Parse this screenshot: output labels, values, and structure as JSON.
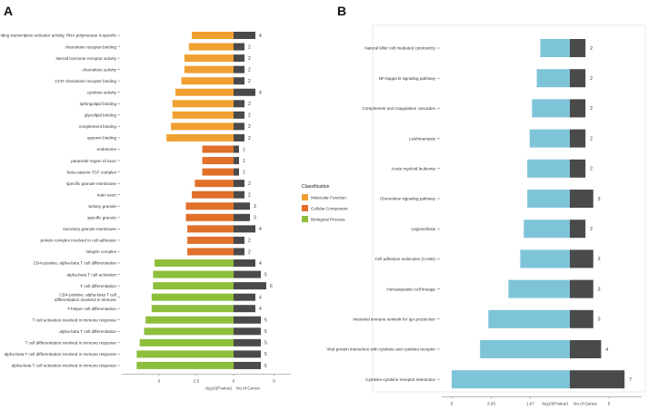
{
  "figure": {
    "panel_a": "A",
    "panel_b": "B",
    "legend": {
      "title": "Classification",
      "items": [
        {
          "label": "Molecular Function",
          "color": "#F0A030"
        },
        {
          "label": "Cellular Component",
          "color": "#E0702A"
        },
        {
          "label": "Biological Process",
          "color": "#8DBE3C"
        }
      ]
    }
  },
  "chart_data": [
    {
      "type": "bar",
      "panel": "A",
      "xlabel_left": "-log10(Pvalue)",
      "xlabel_right": "No.of Genes",
      "ticks_left": [
        "5",
        "2.5",
        "0"
      ],
      "ticks_right": [
        "5"
      ],
      "neglog10_pvalue_max": 7.5,
      "gene_count_max": 8,
      "count_bar_color": "#4A4A4A",
      "rows": [
        {
          "term": "DNA-binding transcription activator activity, RNA polymerase II-specific",
          "class": "Molecular Function",
          "neglog10p": 2.8,
          "genes": 4
        },
        {
          "term": "chemokine receptor binding",
          "class": "Molecular Function",
          "neglog10p": 3.0,
          "genes": 2
        },
        {
          "term": "steroid hormone receptor activity",
          "class": "Molecular Function",
          "neglog10p": 3.3,
          "genes": 2
        },
        {
          "term": "chemokine activity",
          "class": "Molecular Function",
          "neglog10p": 3.3,
          "genes": 2
        },
        {
          "term": "CCR chemokine receptor binding",
          "class": "Molecular Function",
          "neglog10p": 3.5,
          "genes": 2
        },
        {
          "term": "cytokine activity",
          "class": "Molecular Function",
          "neglog10p": 3.9,
          "genes": 4
        },
        {
          "term": "sphingolipid binding",
          "class": "Molecular Function",
          "neglog10p": 4.1,
          "genes": 2
        },
        {
          "term": "glycolipid binding",
          "class": "Molecular Function",
          "neglog10p": 4.1,
          "genes": 2
        },
        {
          "term": "complement binding",
          "class": "Molecular Function",
          "neglog10p": 4.2,
          "genes": 2
        },
        {
          "term": "opsonin binding",
          "class": "Molecular Function",
          "neglog10p": 4.5,
          "genes": 2
        },
        {
          "term": "endosome",
          "class": "Cellular Component",
          "neglog10p": 2.1,
          "genes": 1
        },
        {
          "term": "paranode region of axon",
          "class": "Cellular Component",
          "neglog10p": 2.1,
          "genes": 1
        },
        {
          "term": "beta-catenin-TCF complex",
          "class": "Cellular Component",
          "neglog10p": 2.1,
          "genes": 1
        },
        {
          "term": "specific granule membrane",
          "class": "Cellular Component",
          "neglog10p": 2.6,
          "genes": 2
        },
        {
          "term": "main axon",
          "class": "Cellular Component",
          "neglog10p": 2.8,
          "genes": 2
        },
        {
          "term": "tertiary granule",
          "class": "Cellular Component",
          "neglog10p": 3.2,
          "genes": 3
        },
        {
          "term": "specific granule",
          "class": "Cellular Component",
          "neglog10p": 3.2,
          "genes": 3
        },
        {
          "term": "secretory granule membrane",
          "class": "Cellular Component",
          "neglog10p": 3.1,
          "genes": 4
        },
        {
          "term": "protein complex involved in cell adhesion",
          "class": "Cellular Component",
          "neglog10p": 3.1,
          "genes": 2
        },
        {
          "term": "integrin complex",
          "class": "Cellular Component",
          "neglog10p": 3.1,
          "genes": 2
        },
        {
          "term": "CD4-positive, alpha-beta T cell differentiation",
          "class": "Biological Process",
          "neglog10p": 5.3,
          "genes": 4
        },
        {
          "term": "alpha-beta T cell activation",
          "class": "Biological Process",
          "neglog10p": 5.4,
          "genes": 5
        },
        {
          "term": "T cell differentiation",
          "class": "Biological Process",
          "neglog10p": 5.4,
          "genes": 6
        },
        {
          "term": "CD4-positive, alpha-beta T cell differentiation involved in immune response",
          "class": "Biological Process",
          "neglog10p": 5.5,
          "genes": 4
        },
        {
          "term": "T-helper cell differentiation",
          "class": "Biological Process",
          "neglog10p": 5.5,
          "genes": 4
        },
        {
          "term": "T cell activation involved in immune response",
          "class": "Biological Process",
          "neglog10p": 5.9,
          "genes": 5
        },
        {
          "term": "alpha-beta T cell differentiation",
          "class": "Biological Process",
          "neglog10p": 6.0,
          "genes": 5
        },
        {
          "term": "T cell differentiation involved in immune response",
          "class": "Biological Process",
          "neglog10p": 6.3,
          "genes": 5
        },
        {
          "term": "alpha-beta T cell differentiation involved in immune response",
          "class": "Biological Process",
          "neglog10p": 6.5,
          "genes": 5
        },
        {
          "term": "alpha-beta T cell activation involved in immune response",
          "class": "Biological Process",
          "neglog10p": 6.5,
          "genes": 5
        }
      ]
    },
    {
      "type": "bar",
      "panel": "B",
      "xlabel_left": "-log10(Pvalue)",
      "xlabel_right": "No.of Genes",
      "ticks_left": [
        "5",
        "3.33",
        "1.67"
      ],
      "ticks_right": [
        "5"
      ],
      "neglog10_pvalue_max": 5,
      "gene_count_max": 7.5,
      "pvalue_bar_color": "#7EC4D9",
      "count_bar_color": "#4A4A4A",
      "rows": [
        {
          "term": "Natural killer cell mediated cytotoxicity",
          "neglog10p": 1.25,
          "genes": 2
        },
        {
          "term": "NF-kappa B signaling pathway",
          "neglog10p": 1.4,
          "genes": 2
        },
        {
          "term": "Complement and coagulation cascades",
          "neglog10p": 1.6,
          "genes": 2
        },
        {
          "term": "Leishmaniasis",
          "neglog10p": 1.7,
          "genes": 2
        },
        {
          "term": "Acute myeloid leukemia",
          "neglog10p": 1.8,
          "genes": 2
        },
        {
          "term": "Chemokine signaling pathway",
          "neglog10p": 1.8,
          "genes": 3
        },
        {
          "term": "Legionellosis",
          "neglog10p": 1.95,
          "genes": 2
        },
        {
          "term": "Cell adhesion molecules (CAMs)",
          "neglog10p": 2.1,
          "genes": 3
        },
        {
          "term": "Hematopoietic cell lineage",
          "neglog10p": 2.6,
          "genes": 3
        },
        {
          "term": "Intestinal immune network for IgA production",
          "neglog10p": 3.45,
          "genes": 3
        },
        {
          "term": "Viral protein interaction with cytokine and cytokine receptor",
          "neglog10p": 3.8,
          "genes": 4
        },
        {
          "term": "Cytokine-cytokine receptor interaction",
          "neglog10p": 5.0,
          "genes": 7
        }
      ]
    }
  ]
}
